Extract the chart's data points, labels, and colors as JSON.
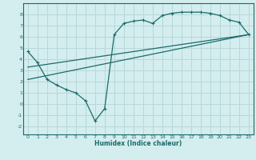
{
  "title": "",
  "xlabel": "Humidex (Indice chaleur)",
  "ylabel": "",
  "bg_color": "#d4edee",
  "grid_color": "#b8d8d8",
  "line_color": "#1a6b6b",
  "xlim": [
    -0.5,
    23.5
  ],
  "ylim": [
    -2.7,
    9.0
  ],
  "xticks": [
    0,
    1,
    2,
    3,
    4,
    5,
    6,
    7,
    8,
    9,
    10,
    11,
    12,
    13,
    14,
    15,
    16,
    17,
    18,
    19,
    20,
    21,
    22,
    23
  ],
  "yticks": [
    -2,
    -1,
    0,
    1,
    2,
    3,
    4,
    5,
    6,
    7,
    8
  ],
  "line1_x": [
    0,
    1,
    2,
    3,
    4,
    5,
    6,
    7,
    8,
    9,
    10,
    11,
    12,
    13,
    14,
    15,
    16,
    17,
    18,
    19,
    20,
    21,
    22,
    23
  ],
  "line1_y": [
    4.7,
    3.7,
    2.2,
    1.7,
    1.3,
    1.0,
    0.3,
    -1.5,
    -0.4,
    6.2,
    7.2,
    7.4,
    7.5,
    7.2,
    7.9,
    8.1,
    8.2,
    8.2,
    8.2,
    8.1,
    7.9,
    7.5,
    7.3,
    6.2
  ],
  "line2_x": [
    0,
    23
  ],
  "line2_y": [
    2.2,
    6.2
  ],
  "line3_x": [
    0,
    23
  ],
  "line3_y": [
    3.3,
    6.2
  ]
}
